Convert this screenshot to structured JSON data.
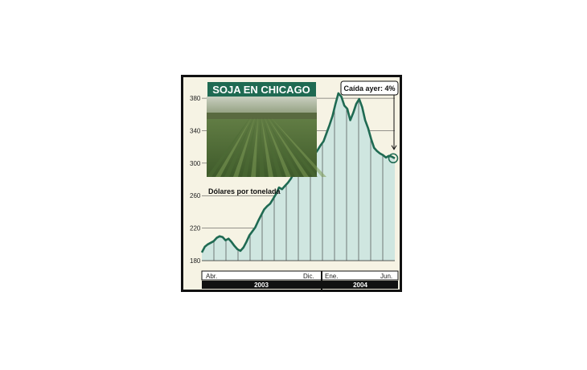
{
  "chart_data": {
    "type": "area",
    "title": "SOJA EN CHICAGO",
    "ylabel": "Dólares por tonelada",
    "annotation": "Caída ayer: 4%",
    "ylim": [
      180,
      390
    ],
    "yticks": [
      180,
      220,
      260,
      300,
      340,
      380
    ],
    "x_tick_labels": [
      "Abr.",
      "Dic.",
      "Ene.",
      "Jun."
    ],
    "year_labels": [
      "2003",
      "2004"
    ],
    "colors": {
      "line": "#1f6a52",
      "fill": "#cfe6e0",
      "year_bar": "#111111",
      "grid": "#333333"
    },
    "series": [
      {
        "x": [
          0,
          1,
          2,
          3,
          4,
          5,
          6,
          7,
          8,
          9,
          10,
          11,
          12,
          13,
          14,
          15,
          16,
          17,
          18,
          19,
          20,
          21,
          22,
          23,
          24,
          25,
          26,
          27,
          28,
          29,
          30,
          31,
          32,
          33,
          34,
          35,
          36,
          37,
          38,
          39,
          40,
          41,
          42,
          43,
          44,
          45,
          46,
          47,
          48,
          49,
          50,
          51,
          52,
          53,
          54,
          55,
          56,
          57,
          58,
          59,
          60,
          61,
          62,
          63,
          64,
          65
        ],
        "values": [
          190,
          197,
          200,
          202,
          204,
          208,
          210,
          209,
          205,
          207,
          203,
          198,
          194,
          192,
          196,
          203,
          211,
          216,
          221,
          229,
          236,
          243,
          247,
          250,
          256,
          262,
          270,
          268,
          272,
          276,
          281,
          288,
          292,
          289,
          293,
          297,
          303,
          307,
          311,
          316,
          322,
          327,
          337,
          347,
          358,
          373,
          386,
          382,
          371,
          367,
          353,
          362,
          373,
          379,
          369,
          353,
          343,
          330,
          319,
          315,
          312,
          310,
          307,
          309,
          308,
          306
        ]
      }
    ]
  }
}
